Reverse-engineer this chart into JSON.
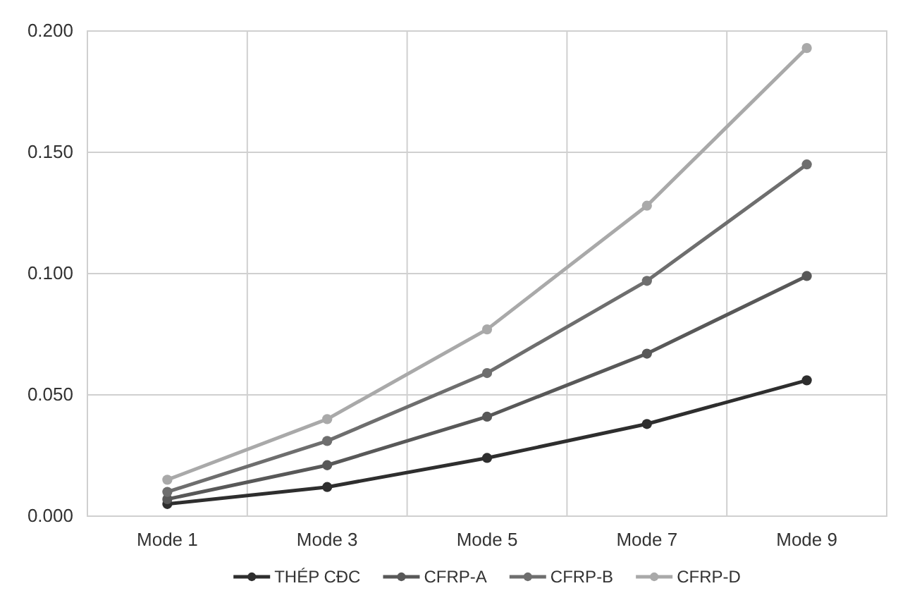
{
  "chart_data": {
    "type": "line",
    "categories": [
      "Mode 1",
      "Mode 3",
      "Mode 5",
      "Mode 7",
      "Mode 9"
    ],
    "series": [
      {
        "name": "THÉP CĐC",
        "color": "#2e2e2e",
        "values": [
          0.005,
          0.012,
          0.024,
          0.038,
          0.056
        ]
      },
      {
        "name": "CFRP-A",
        "color": "#585858",
        "values": [
          0.007,
          0.021,
          0.041,
          0.067,
          0.099
        ]
      },
      {
        "name": "CFRP-B",
        "color": "#6e6e6e",
        "values": [
          0.01,
          0.031,
          0.059,
          0.097,
          0.145
        ]
      },
      {
        "name": "CFRP-D",
        "color": "#a9a9a9",
        "values": [
          0.015,
          0.04,
          0.077,
          0.128,
          0.193
        ]
      }
    ],
    "ylim": [
      0,
      0.2
    ],
    "yticks": [
      {
        "value": 0,
        "label": "0.000"
      },
      {
        "value": 0.05,
        "label": "0.050"
      },
      {
        "value": 0.1,
        "label": "0.100"
      },
      {
        "value": 0.15,
        "label": "0.150"
      },
      {
        "value": 0.2,
        "label": "0.200"
      }
    ],
    "grid": true,
    "legend": "bottom",
    "marker": "circle",
    "line_style": "solid"
  }
}
